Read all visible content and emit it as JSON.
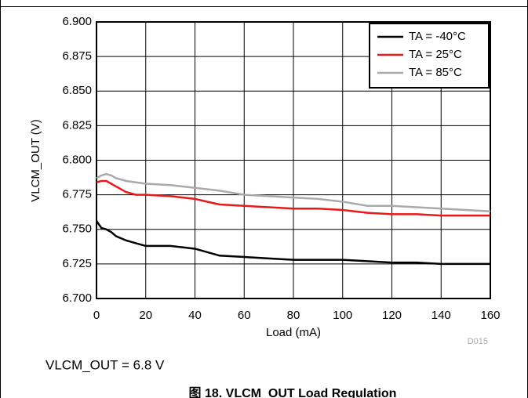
{
  "chart_data": {
    "type": "line",
    "x_label": "Load (mA)",
    "y_label": "VLCM_OUT (V)",
    "note": "VLCM_OUT = 6.8 V",
    "code": "D015",
    "caption": "图 18. VLCM_OUT Load Regulation",
    "xlim": [
      0,
      160
    ],
    "xticks": [
      0,
      20,
      40,
      60,
      80,
      100,
      120,
      140,
      160
    ],
    "ylim": [
      6.7,
      6.9
    ],
    "yticks": [
      {
        "value": 6.7,
        "label": "6.700"
      },
      {
        "value": 6.725,
        "label": "6.725"
      },
      {
        "value": 6.75,
        "label": "6.750"
      },
      {
        "value": 6.775,
        "label": "6.775"
      },
      {
        "value": 6.8,
        "label": "6.800"
      },
      {
        "value": 6.825,
        "label": "6.825"
      },
      {
        "value": 6.85,
        "label": "6.850"
      },
      {
        "value": 6.875,
        "label": "6.875"
      },
      {
        "value": 6.9,
        "label": "6.900"
      }
    ],
    "grid": true,
    "legend": "upper right",
    "x": [
      0,
      2,
      4,
      6,
      8,
      12,
      16,
      20,
      30,
      40,
      50,
      60,
      70,
      80,
      90,
      100,
      110,
      120,
      130,
      140,
      150,
      160
    ],
    "series": [
      {
        "name": "TA = -40°C",
        "color": "#000000",
        "values": [
          6.756,
          6.751,
          6.75,
          6.748,
          6.745,
          6.742,
          6.74,
          6.738,
          6.738,
          6.736,
          6.731,
          6.73,
          6.729,
          6.728,
          6.728,
          6.728,
          6.727,
          6.726,
          6.726,
          6.725,
          6.725,
          6.725
        ]
      },
      {
        "name": "TA = 25°C",
        "color": "#e8191b",
        "values": [
          6.784,
          6.785,
          6.785,
          6.783,
          6.781,
          6.777,
          6.775,
          6.775,
          6.774,
          6.772,
          6.768,
          6.767,
          6.766,
          6.765,
          6.765,
          6.764,
          6.762,
          6.761,
          6.761,
          6.76,
          6.76,
          6.76
        ]
      },
      {
        "name": "TA = 85°C",
        "color": "#aaaaaa",
        "values": [
          6.787,
          6.789,
          6.79,
          6.789,
          6.787,
          6.785,
          6.784,
          6.783,
          6.782,
          6.78,
          6.778,
          6.775,
          6.774,
          6.773,
          6.772,
          6.77,
          6.767,
          6.767,
          6.766,
          6.765,
          6.764,
          6.763
        ]
      }
    ]
  }
}
